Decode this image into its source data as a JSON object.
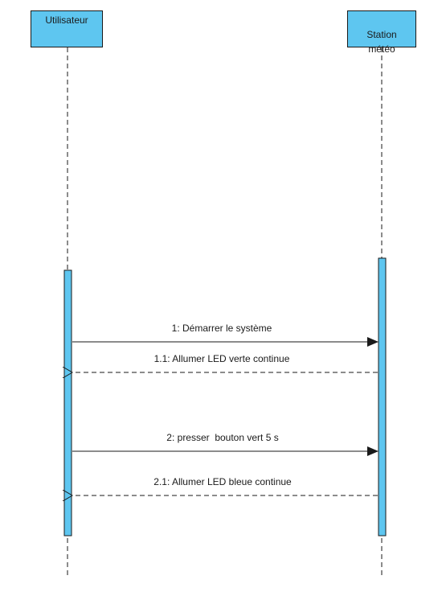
{
  "lifelines": [
    {
      "id": "utilisateur",
      "label": "Utilisateur"
    },
    {
      "id": "station",
      "label": "Station\nmétéo"
    }
  ],
  "messages": [
    {
      "id": "m1",
      "label": "1: Démarrer le système",
      "from": "utilisateur",
      "to": "station",
      "kind": "synchronous"
    },
    {
      "id": "m11",
      "label": "1.1: Allumer LED verte continue",
      "from": "station",
      "to": "utilisateur",
      "kind": "return"
    },
    {
      "id": "m2",
      "label": "2: presser  bouton vert 5 s",
      "from": "utilisateur",
      "to": "station",
      "kind": "synchronous"
    },
    {
      "id": "m21",
      "label": "2.1: Allumer LED bleue continue",
      "from": "station",
      "to": "utilisateur",
      "kind": "return"
    }
  ],
  "colors": {
    "head_fill": "#5ec6f0",
    "activation_fill": "#5ec6f0",
    "line": "#1a1a1a"
  }
}
